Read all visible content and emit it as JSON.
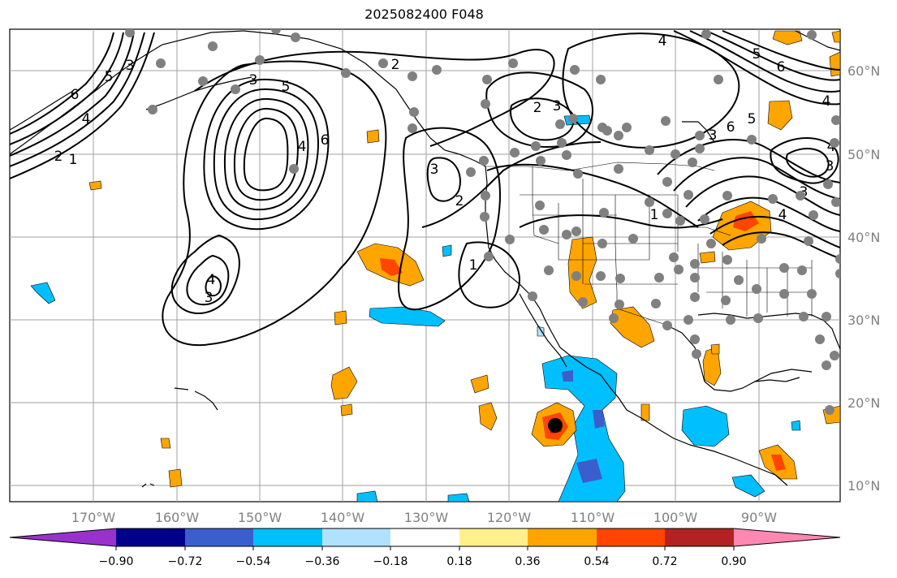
{
  "title": "2025082400 F048",
  "map": {
    "lon_labels": [
      "170°W",
      "160°W",
      "150°W",
      "140°W",
      "130°W",
      "120°W",
      "110°W",
      "100°W",
      "90°W"
    ],
    "lat_labels": [
      "60°N",
      "50°N",
      "40°N",
      "30°N",
      "20°N",
      "10°N"
    ],
    "gridlines": true
  },
  "contours": {
    "color": "#000000",
    "labels": [
      "6",
      "5",
      "4",
      "3",
      "2",
      "1",
      "2",
      "3",
      "5",
      "6",
      "4",
      "3",
      "4",
      "3",
      "2",
      "1",
      "1",
      "2",
      "3",
      "4",
      "5",
      "6",
      "4",
      "5",
      "6",
      "3",
      "4",
      "3",
      "4",
      "3"
    ]
  },
  "station_markers": {
    "color": "#808080"
  },
  "storm_center": {
    "color": "#000000"
  },
  "colorbar": {
    "colors": [
      "#9932cc",
      "#00008b",
      "#3a5fcd",
      "#00bfff",
      "#b0e2ff",
      "#ffffff",
      "#fff08b",
      "#ffa500",
      "#ff4500",
      "#b22222",
      "#ff88b3"
    ],
    "tick_labels": [
      "−0.90",
      "−0.72",
      "−0.54",
      "−0.36",
      "−0.18",
      "0.18",
      "0.36",
      "0.54",
      "0.72",
      "0.90"
    ]
  }
}
